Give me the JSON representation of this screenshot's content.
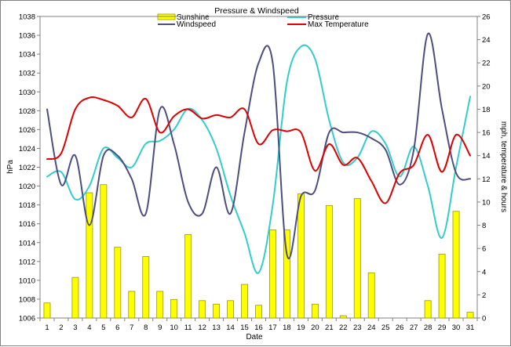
{
  "chart_data": {
    "type": "bar+line",
    "title": "Pressure & Windspeed",
    "xlabel": "Date",
    "ylabel_left": "hPa",
    "ylabel_right": "mph, temperature & hours",
    "categories": [
      "1",
      "2",
      "3",
      "4",
      "5",
      "6",
      "7",
      "8",
      "9",
      "10",
      "11",
      "12",
      "13",
      "14",
      "15",
      "16",
      "17",
      "18",
      "19",
      "20",
      "21",
      "22",
      "23",
      "24",
      "25",
      "26",
      "27",
      "28",
      "29",
      "30",
      "31"
    ],
    "left_axis": {
      "min": 1006,
      "max": 1038,
      "step": 2
    },
    "right_axis": {
      "min": 0,
      "max": 26,
      "step": 2
    },
    "legend_position": "top",
    "grid": false,
    "series": [
      {
        "name": "Sunshine",
        "kind": "bar",
        "axis": "right",
        "color": "#ffff00",
        "stroke": "#999900",
        "values": [
          1.3,
          0,
          3.5,
          10.8,
          11.5,
          6.1,
          2.3,
          5.3,
          2.3,
          1.6,
          7.2,
          1.5,
          1.2,
          1.5,
          2.9,
          1.1,
          7.6,
          7.6,
          10.7,
          1.2,
          9.7,
          0.2,
          10.3,
          3.9,
          0,
          0,
          0,
          1.5,
          5.5,
          9.2,
          0.5
        ]
      },
      {
        "name": "Pressure",
        "kind": "line",
        "axis": "left",
        "color": "#33cccc",
        "values": [
          1021.0,
          1021.5,
          1018.6,
          1020.0,
          1024.0,
          1023.0,
          1022.0,
          1024.5,
          1024.8,
          1026.0,
          1028.2,
          1027.0,
          1024.0,
          1019.0,
          1015.0,
          1010.8,
          1018.0,
          1031.0,
          1034.8,
          1033.5,
          1027.0,
          1022.5,
          1023.0,
          1025.8,
          1024.5,
          1021.0,
          1024.2,
          1020.0,
          1014.5,
          1022.0,
          1029.5
        ]
      },
      {
        "name": "Windspeed",
        "kind": "line",
        "axis": "right",
        "color": "#4d4d80",
        "values": [
          18.0,
          11.5,
          14.0,
          8.0,
          14.0,
          14.0,
          12.0,
          9.0,
          18.0,
          15.0,
          10.0,
          9.0,
          13.0,
          9.0,
          16.0,
          22.0,
          22.0,
          5.5,
          10.5,
          11.0,
          16.0,
          16.0,
          16.0,
          15.5,
          14.5,
          11.5,
          14.5,
          24.5,
          18.0,
          12.5,
          12.0
        ]
      },
      {
        "name": "Max Temperature",
        "kind": "line",
        "axis": "right",
        "color": "#dd0000",
        "values": [
          13.7,
          14.2,
          18.0,
          19.0,
          18.8,
          18.3,
          17.3,
          18.9,
          16.0,
          17.4,
          18.0,
          17.2,
          17.5,
          17.3,
          18.0,
          15.0,
          16.2,
          16.1,
          16.0,
          12.7,
          15.0,
          13.2,
          13.8,
          11.8,
          9.9,
          12.5,
          13.2,
          15.8,
          12.6,
          15.8,
          14.0
        ]
      }
    ]
  }
}
